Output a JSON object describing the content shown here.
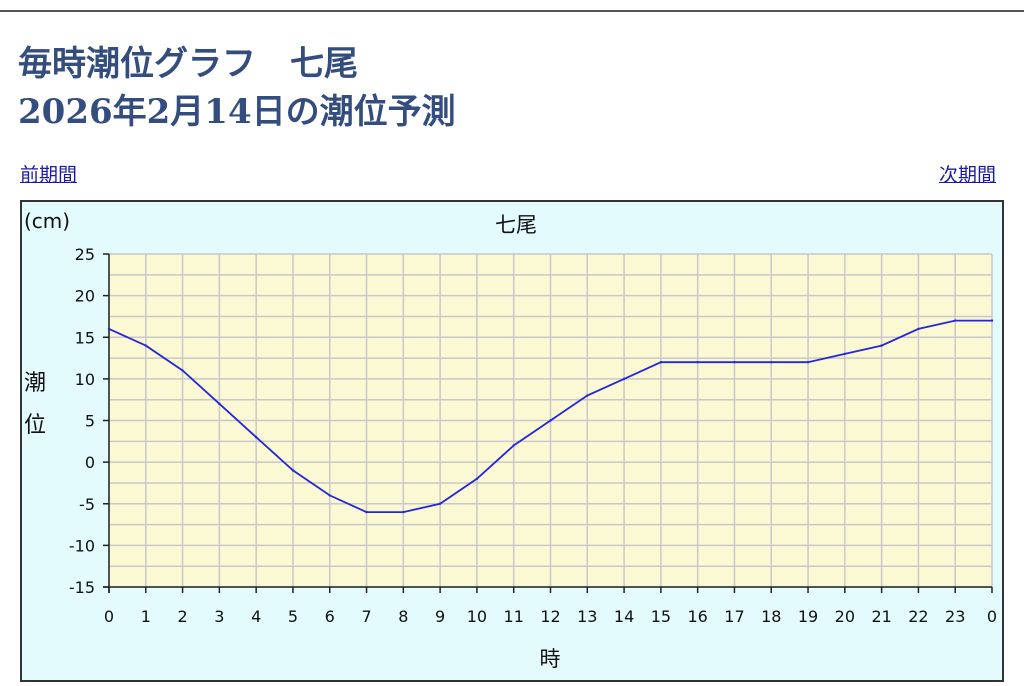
{
  "page": {
    "title_line1": "毎時潮位グラフ　七尾",
    "title_line2": "2026年2月14日の潮位予測"
  },
  "nav": {
    "prev_label": "前期間",
    "next_label": "次期間"
  },
  "colors": {
    "title": "#334d7e",
    "link": "#1a1aa6",
    "outer_bg": "#e3fbfd",
    "plot_bg": "#fbf8d4",
    "grid": "#c8c8c8",
    "line": "#2626d9"
  },
  "chart_data": {
    "type": "line",
    "title": "七尾",
    "unit_label": "(cm)",
    "ylabel": "潮位",
    "xlabel": "時",
    "ylim": [
      -15,
      25
    ],
    "yticks": [
      25,
      20,
      15,
      10,
      5,
      0,
      -5,
      -10,
      -15
    ],
    "categories": [
      "0",
      "1",
      "2",
      "3",
      "4",
      "5",
      "6",
      "7",
      "8",
      "9",
      "10",
      "11",
      "12",
      "13",
      "14",
      "15",
      "16",
      "17",
      "18",
      "19",
      "20",
      "21",
      "22",
      "23",
      "0"
    ],
    "values": [
      16,
      14,
      11,
      7,
      3,
      -1,
      -4,
      -6,
      -6,
      -5,
      -2,
      2,
      5,
      8,
      10,
      12,
      12,
      12,
      12,
      12,
      13,
      14,
      16,
      17,
      17
    ],
    "grid": true
  }
}
